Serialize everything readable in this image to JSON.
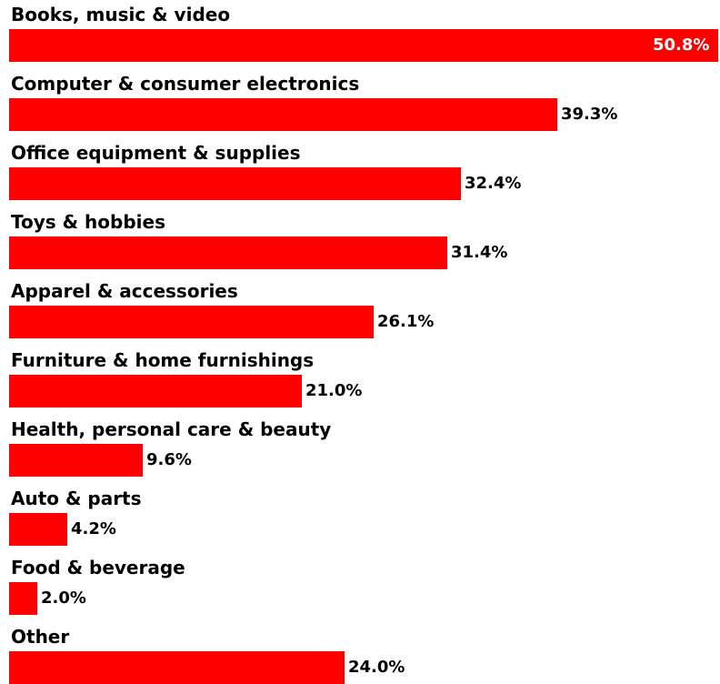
{
  "chart_data": {
    "type": "bar",
    "orientation": "horizontal",
    "categories": [
      "Books, music & video",
      "Computer & consumer electronics",
      "Office equipment & supplies",
      "Toys & hobbies",
      "Apparel & accessories",
      "Furniture & home furnishings",
      "Health, personal care & beauty",
      "Auto & parts",
      "Food & beverage",
      "Other"
    ],
    "values": [
      50.8,
      39.3,
      32.4,
      31.4,
      26.1,
      21.0,
      9.6,
      4.2,
      2.0,
      24.0
    ],
    "value_labels": [
      "50.8%",
      "39.3%",
      "32.4%",
      "31.4%",
      "26.1%",
      "21.0%",
      "9.6%",
      "4.2%",
      "2.0%",
      "24.0%"
    ],
    "xlim": [
      0,
      50.8
    ],
    "grid": false,
    "legend": "none",
    "bar_color": "#ff0000"
  }
}
